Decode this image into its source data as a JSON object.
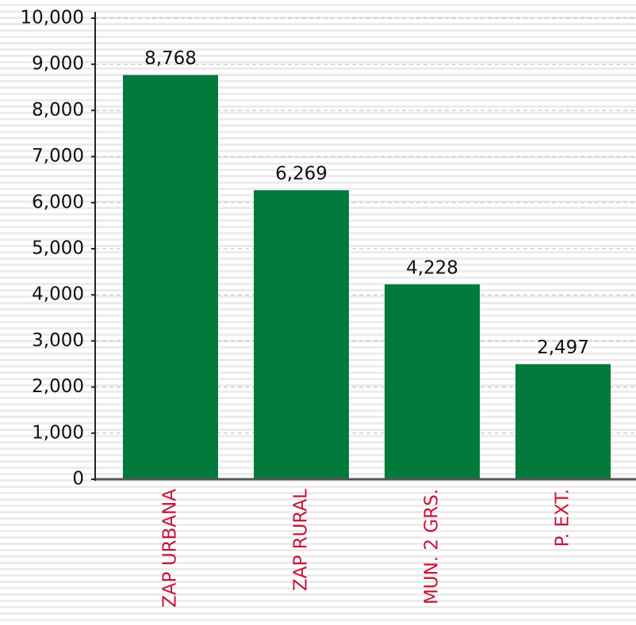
{
  "chart_data": {
    "type": "bar",
    "categories": [
      "ZAP URBANA",
      "ZAP RURAL",
      "MUN. 2 GRS.",
      "P. EXT."
    ],
    "values": [
      8768,
      6269,
      4228,
      2497
    ],
    "value_labels": [
      "8,768",
      "6,269",
      "4,228",
      "2,497"
    ],
    "color": "#027a3c",
    "category_color": "#c8143c",
    "ylim": [
      0,
      10000
    ],
    "yticks": [
      0,
      {
        "value": 1000,
        "label": "1,000"
      },
      {
        "value": 2000,
        "label": "2,000"
      },
      {
        "value": 3000,
        "label": "3,000"
      },
      {
        "value": 4000,
        "label": "4,000"
      },
      {
        "value": 5000,
        "label": "5,000"
      },
      {
        "value": 6000,
        "label": "6,000"
      },
      {
        "value": 7000,
        "label": "7,000"
      },
      {
        "value": 8000,
        "label": "8,000"
      },
      {
        "value": 9000,
        "label": "9,000"
      },
      {
        "value": 10000,
        "label": "10,000"
      }
    ],
    "grid": true
  }
}
